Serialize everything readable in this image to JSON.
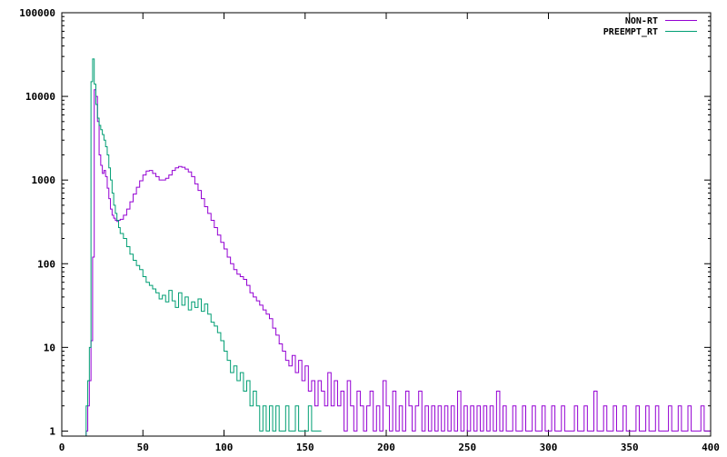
{
  "chart_data": {
    "type": "line",
    "title": "",
    "xlabel": "",
    "ylabel": "",
    "xlim": [
      0,
      400
    ],
    "ylim": [
      0.87,
      100000
    ],
    "yscale": "log",
    "step": true,
    "grid": false,
    "legend_position": "top-right",
    "x_ticks": [
      0,
      50,
      100,
      150,
      200,
      250,
      300,
      350,
      400
    ],
    "x_tick_labels": [
      "0",
      "50",
      "100",
      "150",
      "200",
      "250",
      "300",
      "350",
      "400"
    ],
    "y_ticks": [
      1,
      10,
      100,
      1000,
      10000,
      100000
    ],
    "y_tick_labels": [
      "1",
      "10",
      "100",
      "1000",
      "10000",
      "100000"
    ],
    "series": [
      {
        "name": "NON-RT",
        "color": "#9400d3",
        "points": [
          [
            15,
            1
          ],
          [
            16,
            2
          ],
          [
            17,
            4
          ],
          [
            18,
            12
          ],
          [
            19,
            120
          ],
          [
            20,
            12000
          ],
          [
            21,
            10000
          ],
          [
            22,
            5000
          ],
          [
            23,
            2000
          ],
          [
            24,
            1500
          ],
          [
            25,
            1200
          ],
          [
            26,
            1300
          ],
          [
            27,
            1100
          ],
          [
            28,
            800
          ],
          [
            29,
            600
          ],
          [
            30,
            450
          ],
          [
            31,
            380
          ],
          [
            32,
            350
          ],
          [
            33,
            330
          ],
          [
            34,
            320
          ],
          [
            35,
            330
          ],
          [
            36,
            340
          ],
          [
            38,
            380
          ],
          [
            40,
            450
          ],
          [
            42,
            550
          ],
          [
            44,
            680
          ],
          [
            46,
            820
          ],
          [
            48,
            980
          ],
          [
            50,
            1150
          ],
          [
            52,
            1280
          ],
          [
            54,
            1300
          ],
          [
            56,
            1200
          ],
          [
            58,
            1100
          ],
          [
            60,
            1000
          ],
          [
            62,
            1000
          ],
          [
            64,
            1050
          ],
          [
            66,
            1150
          ],
          [
            68,
            1300
          ],
          [
            70,
            1400
          ],
          [
            72,
            1450
          ],
          [
            74,
            1420
          ],
          [
            76,
            1350
          ],
          [
            78,
            1250
          ],
          [
            80,
            1100
          ],
          [
            82,
            900
          ],
          [
            84,
            750
          ],
          [
            86,
            600
          ],
          [
            88,
            480
          ],
          [
            90,
            400
          ],
          [
            92,
            330
          ],
          [
            94,
            270
          ],
          [
            96,
            220
          ],
          [
            98,
            180
          ],
          [
            100,
            150
          ],
          [
            102,
            120
          ],
          [
            104,
            100
          ],
          [
            106,
            85
          ],
          [
            108,
            75
          ],
          [
            110,
            70
          ],
          [
            112,
            65
          ],
          [
            114,
            55
          ],
          [
            116,
            45
          ],
          [
            118,
            40
          ],
          [
            120,
            36
          ],
          [
            122,
            32
          ],
          [
            124,
            28
          ],
          [
            126,
            25
          ],
          [
            128,
            22
          ],
          [
            130,
            17
          ],
          [
            132,
            14
          ],
          [
            134,
            11
          ],
          [
            136,
            9
          ],
          [
            138,
            7
          ],
          [
            140,
            6
          ],
          [
            142,
            8
          ],
          [
            144,
            5
          ],
          [
            146,
            7
          ],
          [
            148,
            4
          ],
          [
            150,
            6
          ],
          [
            152,
            3
          ],
          [
            154,
            4
          ],
          [
            156,
            2
          ],
          [
            158,
            4
          ],
          [
            160,
            3
          ],
          [
            162,
            2
          ],
          [
            164,
            5
          ],
          [
            166,
            2
          ],
          [
            168,
            4
          ],
          [
            170,
            2
          ],
          [
            172,
            3
          ],
          [
            174,
            1
          ],
          [
            176,
            4
          ],
          [
            178,
            2
          ],
          [
            180,
            1
          ],
          [
            182,
            3
          ],
          [
            184,
            2
          ],
          [
            186,
            1
          ],
          [
            188,
            2
          ],
          [
            190,
            3
          ],
          [
            192,
            1
          ],
          [
            194,
            2
          ],
          [
            196,
            1
          ],
          [
            198,
            4
          ],
          [
            200,
            2
          ],
          [
            202,
            1
          ],
          [
            204,
            3
          ],
          [
            206,
            1
          ],
          [
            208,
            2
          ],
          [
            210,
            1
          ],
          [
            212,
            3
          ],
          [
            214,
            2
          ],
          [
            216,
            1
          ],
          [
            218,
            2
          ],
          [
            220,
            3
          ],
          [
            222,
            1
          ],
          [
            224,
            2
          ],
          [
            226,
            1
          ],
          [
            228,
            2
          ],
          [
            230,
            1
          ],
          [
            232,
            2
          ],
          [
            234,
            1
          ],
          [
            236,
            2
          ],
          [
            238,
            1
          ],
          [
            240,
            2
          ],
          [
            242,
            1
          ],
          [
            244,
            3
          ],
          [
            246,
            1
          ],
          [
            248,
            2
          ],
          [
            250,
            1
          ],
          [
            252,
            2
          ],
          [
            254,
            1
          ],
          [
            256,
            2
          ],
          [
            258,
            1
          ],
          [
            260,
            2
          ],
          [
            262,
            1
          ],
          [
            264,
            2
          ],
          [
            266,
            1
          ],
          [
            268,
            3
          ],
          [
            270,
            1
          ],
          [
            272,
            2
          ],
          [
            274,
            1
          ],
          [
            276,
            1
          ],
          [
            278,
            2
          ],
          [
            280,
            1
          ],
          [
            282,
            1
          ],
          [
            284,
            2
          ],
          [
            286,
            1
          ],
          [
            288,
            1
          ],
          [
            290,
            2
          ],
          [
            292,
            1
          ],
          [
            294,
            1
          ],
          [
            296,
            2
          ],
          [
            298,
            1
          ],
          [
            300,
            1
          ],
          [
            302,
            2
          ],
          [
            304,
            1
          ],
          [
            306,
            1
          ],
          [
            308,
            2
          ],
          [
            310,
            1
          ],
          [
            312,
            1
          ],
          [
            314,
            1
          ],
          [
            316,
            2
          ],
          [
            318,
            1
          ],
          [
            320,
            1
          ],
          [
            322,
            2
          ],
          [
            324,
            1
          ],
          [
            326,
            1
          ],
          [
            328,
            3
          ],
          [
            330,
            1
          ],
          [
            332,
            1
          ],
          [
            334,
            2
          ],
          [
            336,
            1
          ],
          [
            338,
            1
          ],
          [
            340,
            2
          ],
          [
            342,
            1
          ],
          [
            344,
            1
          ],
          [
            346,
            2
          ],
          [
            348,
            1
          ],
          [
            350,
            1
          ],
          [
            352,
            1
          ],
          [
            354,
            2
          ],
          [
            356,
            1
          ],
          [
            358,
            1
          ],
          [
            360,
            2
          ],
          [
            362,
            1
          ],
          [
            364,
            1
          ],
          [
            366,
            2
          ],
          [
            368,
            1
          ],
          [
            370,
            1
          ],
          [
            372,
            1
          ],
          [
            374,
            2
          ],
          [
            376,
            1
          ],
          [
            378,
            1
          ],
          [
            380,
            2
          ],
          [
            382,
            1
          ],
          [
            384,
            1
          ],
          [
            386,
            2
          ],
          [
            388,
            1
          ],
          [
            390,
            1
          ],
          [
            392,
            1
          ],
          [
            394,
            2
          ],
          [
            396,
            1
          ],
          [
            398,
            1
          ]
        ]
      },
      {
        "name": "PREEMPT_RT",
        "color": "#009e73",
        "points": [
          [
            15,
            2
          ],
          [
            16,
            4
          ],
          [
            17,
            10
          ],
          [
            18,
            15000
          ],
          [
            19,
            28000
          ],
          [
            20,
            14000
          ],
          [
            21,
            8000
          ],
          [
            22,
            5500
          ],
          [
            23,
            4500
          ],
          [
            24,
            4000
          ],
          [
            25,
            3500
          ],
          [
            26,
            3000
          ],
          [
            27,
            2500
          ],
          [
            28,
            2000
          ],
          [
            29,
            1400
          ],
          [
            30,
            1000
          ],
          [
            31,
            700
          ],
          [
            32,
            500
          ],
          [
            33,
            400
          ],
          [
            34,
            330
          ],
          [
            35,
            270
          ],
          [
            36,
            230
          ],
          [
            38,
            200
          ],
          [
            40,
            160
          ],
          [
            42,
            130
          ],
          [
            44,
            110
          ],
          [
            46,
            95
          ],
          [
            48,
            85
          ],
          [
            50,
            70
          ],
          [
            52,
            60
          ],
          [
            54,
            55
          ],
          [
            56,
            50
          ],
          [
            58,
            45
          ],
          [
            60,
            38
          ],
          [
            62,
            42
          ],
          [
            64,
            35
          ],
          [
            66,
            48
          ],
          [
            68,
            36
          ],
          [
            70,
            30
          ],
          [
            72,
            45
          ],
          [
            74,
            32
          ],
          [
            76,
            40
          ],
          [
            78,
            28
          ],
          [
            80,
            35
          ],
          [
            82,
            30
          ],
          [
            84,
            38
          ],
          [
            86,
            27
          ],
          [
            88,
            33
          ],
          [
            90,
            25
          ],
          [
            92,
            20
          ],
          [
            94,
            18
          ],
          [
            96,
            15
          ],
          [
            98,
            12
          ],
          [
            100,
            9
          ],
          [
            102,
            7
          ],
          [
            104,
            5
          ],
          [
            106,
            6
          ],
          [
            108,
            4
          ],
          [
            110,
            5
          ],
          [
            112,
            3
          ],
          [
            114,
            4
          ],
          [
            116,
            2
          ],
          [
            118,
            3
          ],
          [
            120,
            2
          ],
          [
            122,
            1
          ],
          [
            124,
            2
          ],
          [
            126,
            1
          ],
          [
            128,
            2
          ],
          [
            130,
            1
          ],
          [
            132,
            2
          ],
          [
            134,
            1
          ],
          [
            136,
            1
          ],
          [
            138,
            2
          ],
          [
            140,
            1
          ],
          [
            142,
            1
          ],
          [
            144,
            2
          ],
          [
            146,
            1
          ],
          [
            148,
            1
          ],
          [
            150,
            1
          ],
          [
            152,
            2
          ],
          [
            154,
            1
          ],
          [
            156,
            1
          ],
          [
            158,
            1
          ]
        ]
      }
    ]
  }
}
